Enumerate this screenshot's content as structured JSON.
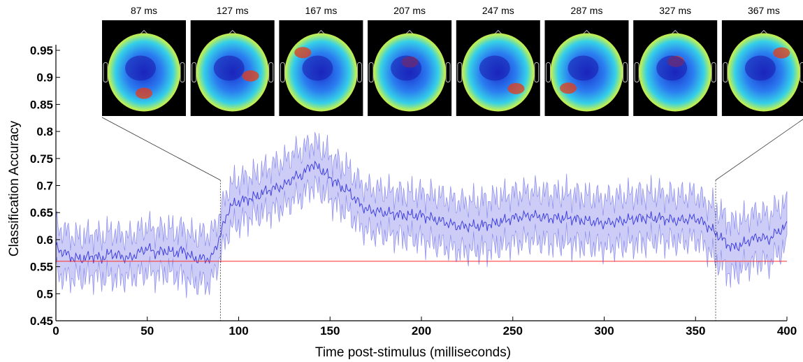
{
  "chart_data": {
    "type": "line",
    "xlabel": "Time post-stimulus (milliseconds)",
    "ylabel": "Classification Accuracy",
    "xlim": [
      0,
      400
    ],
    "ylim": [
      0.45,
      0.95
    ],
    "xticks": [
      0,
      50,
      100,
      150,
      200,
      250,
      300,
      350,
      400
    ],
    "yticks": [
      0.45,
      0.5,
      0.55,
      0.6,
      0.65,
      0.7,
      0.75,
      0.8,
      0.85,
      0.9,
      0.95
    ],
    "grid": false,
    "legend": "none",
    "series": [
      {
        "color": "#4040e0",
        "band_color": "#c7c7f5",
        "x": [
          0,
          5,
          10,
          15,
          20,
          25,
          30,
          35,
          40,
          45,
          50,
          55,
          60,
          65,
          70,
          75,
          80,
          85,
          88,
          90,
          93,
          95,
          100,
          105,
          110,
          115,
          120,
          125,
          130,
          135,
          140,
          145,
          150,
          155,
          160,
          165,
          170,
          180,
          190,
          200,
          210,
          220,
          230,
          240,
          250,
          260,
          270,
          280,
          290,
          300,
          310,
          320,
          330,
          340,
          350,
          355,
          360,
          365,
          370,
          375,
          380,
          385,
          390,
          395,
          400
        ],
        "y": [
          0.585,
          0.575,
          0.565,
          0.565,
          0.57,
          0.565,
          0.575,
          0.57,
          0.565,
          0.575,
          0.585,
          0.575,
          0.58,
          0.575,
          0.58,
          0.565,
          0.565,
          0.565,
          0.59,
          0.61,
          0.64,
          0.66,
          0.67,
          0.675,
          0.68,
          0.69,
          0.695,
          0.7,
          0.715,
          0.72,
          0.74,
          0.73,
          0.715,
          0.7,
          0.69,
          0.67,
          0.655,
          0.65,
          0.645,
          0.645,
          0.635,
          0.625,
          0.625,
          0.63,
          0.64,
          0.645,
          0.64,
          0.64,
          0.635,
          0.63,
          0.635,
          0.64,
          0.64,
          0.635,
          0.64,
          0.63,
          0.615,
          0.6,
          0.585,
          0.59,
          0.6,
          0.605,
          0.6,
          0.615,
          0.625
        ],
        "lower": [
          0.54,
          0.53,
          0.53,
          0.53,
          0.535,
          0.53,
          0.53,
          0.53,
          0.53,
          0.535,
          0.54,
          0.535,
          0.54,
          0.535,
          0.53,
          0.52,
          0.52,
          0.52,
          0.55,
          0.57,
          0.6,
          0.62,
          0.63,
          0.64,
          0.645,
          0.65,
          0.655,
          0.66,
          0.675,
          0.68,
          0.7,
          0.69,
          0.675,
          0.66,
          0.65,
          0.63,
          0.615,
          0.61,
          0.605,
          0.6,
          0.59,
          0.58,
          0.58,
          0.585,
          0.595,
          0.6,
          0.595,
          0.595,
          0.59,
          0.585,
          0.59,
          0.595,
          0.6,
          0.595,
          0.6,
          0.59,
          0.565,
          0.55,
          0.535,
          0.545,
          0.555,
          0.56,
          0.555,
          0.575,
          0.585
        ],
        "upper": [
          0.625,
          0.615,
          0.605,
          0.605,
          0.61,
          0.605,
          0.615,
          0.61,
          0.605,
          0.615,
          0.625,
          0.615,
          0.62,
          0.615,
          0.62,
          0.605,
          0.61,
          0.61,
          0.63,
          0.65,
          0.68,
          0.7,
          0.71,
          0.715,
          0.72,
          0.73,
          0.74,
          0.745,
          0.76,
          0.765,
          0.78,
          0.77,
          0.755,
          0.74,
          0.73,
          0.71,
          0.695,
          0.69,
          0.685,
          0.685,
          0.68,
          0.67,
          0.67,
          0.675,
          0.685,
          0.69,
          0.685,
          0.685,
          0.68,
          0.675,
          0.68,
          0.685,
          0.685,
          0.68,
          0.685,
          0.67,
          0.66,
          0.645,
          0.63,
          0.635,
          0.645,
          0.65,
          0.645,
          0.66,
          0.665
        ]
      }
    ],
    "reference_line": {
      "y": 0.56,
      "color": "#ff2a2a"
    },
    "zoom_markers": [
      90,
      361
    ],
    "topomaps": [
      {
        "label": "87 ms"
      },
      {
        "label": "127 ms"
      },
      {
        "label": "167 ms"
      },
      {
        "label": "207 ms"
      },
      {
        "label": "247 ms"
      },
      {
        "label": "287 ms"
      },
      {
        "label": "327 ms"
      },
      {
        "label": "367 ms"
      }
    ]
  }
}
